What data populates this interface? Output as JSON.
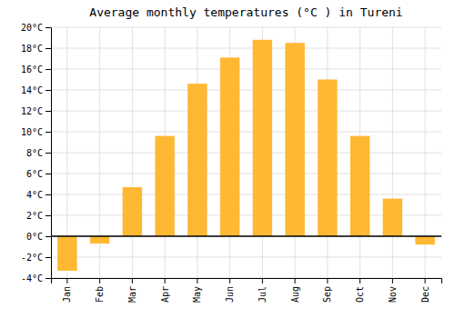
{
  "chart_data": {
    "type": "bar",
    "title": "Average monthly temperatures (°C ) in Tureni",
    "categories": [
      "Jan",
      "Feb",
      "Mar",
      "Apr",
      "May",
      "Jun",
      "Jul",
      "Aug",
      "Sep",
      "Oct",
      "Nov",
      "Dec"
    ],
    "values": [
      -3.3,
      -0.7,
      4.7,
      9.6,
      14.6,
      17.1,
      18.8,
      18.5,
      15.0,
      9.6,
      3.6,
      -0.8
    ],
    "color": "#FFB833",
    "ylim": [
      -4,
      20
    ],
    "yticks": [
      {
        "value": -4,
        "label": "-4°C"
      },
      {
        "value": -2,
        "label": "-2°C"
      },
      {
        "value": 0,
        "label": "0°C"
      },
      {
        "value": 2,
        "label": "2°C"
      },
      {
        "value": 4,
        "label": "4°C"
      },
      {
        "value": 6,
        "label": "6°C"
      },
      {
        "value": 8,
        "label": "8°C"
      },
      {
        "value": 10,
        "label": "10°C"
      },
      {
        "value": 12,
        "label": "12°C"
      },
      {
        "value": 14,
        "label": "14°C"
      },
      {
        "value": 16,
        "label": "16°C"
      },
      {
        "value": 18,
        "label": "18°C"
      },
      {
        "value": 20,
        "label": "20°C"
      }
    ],
    "grid": true
  }
}
